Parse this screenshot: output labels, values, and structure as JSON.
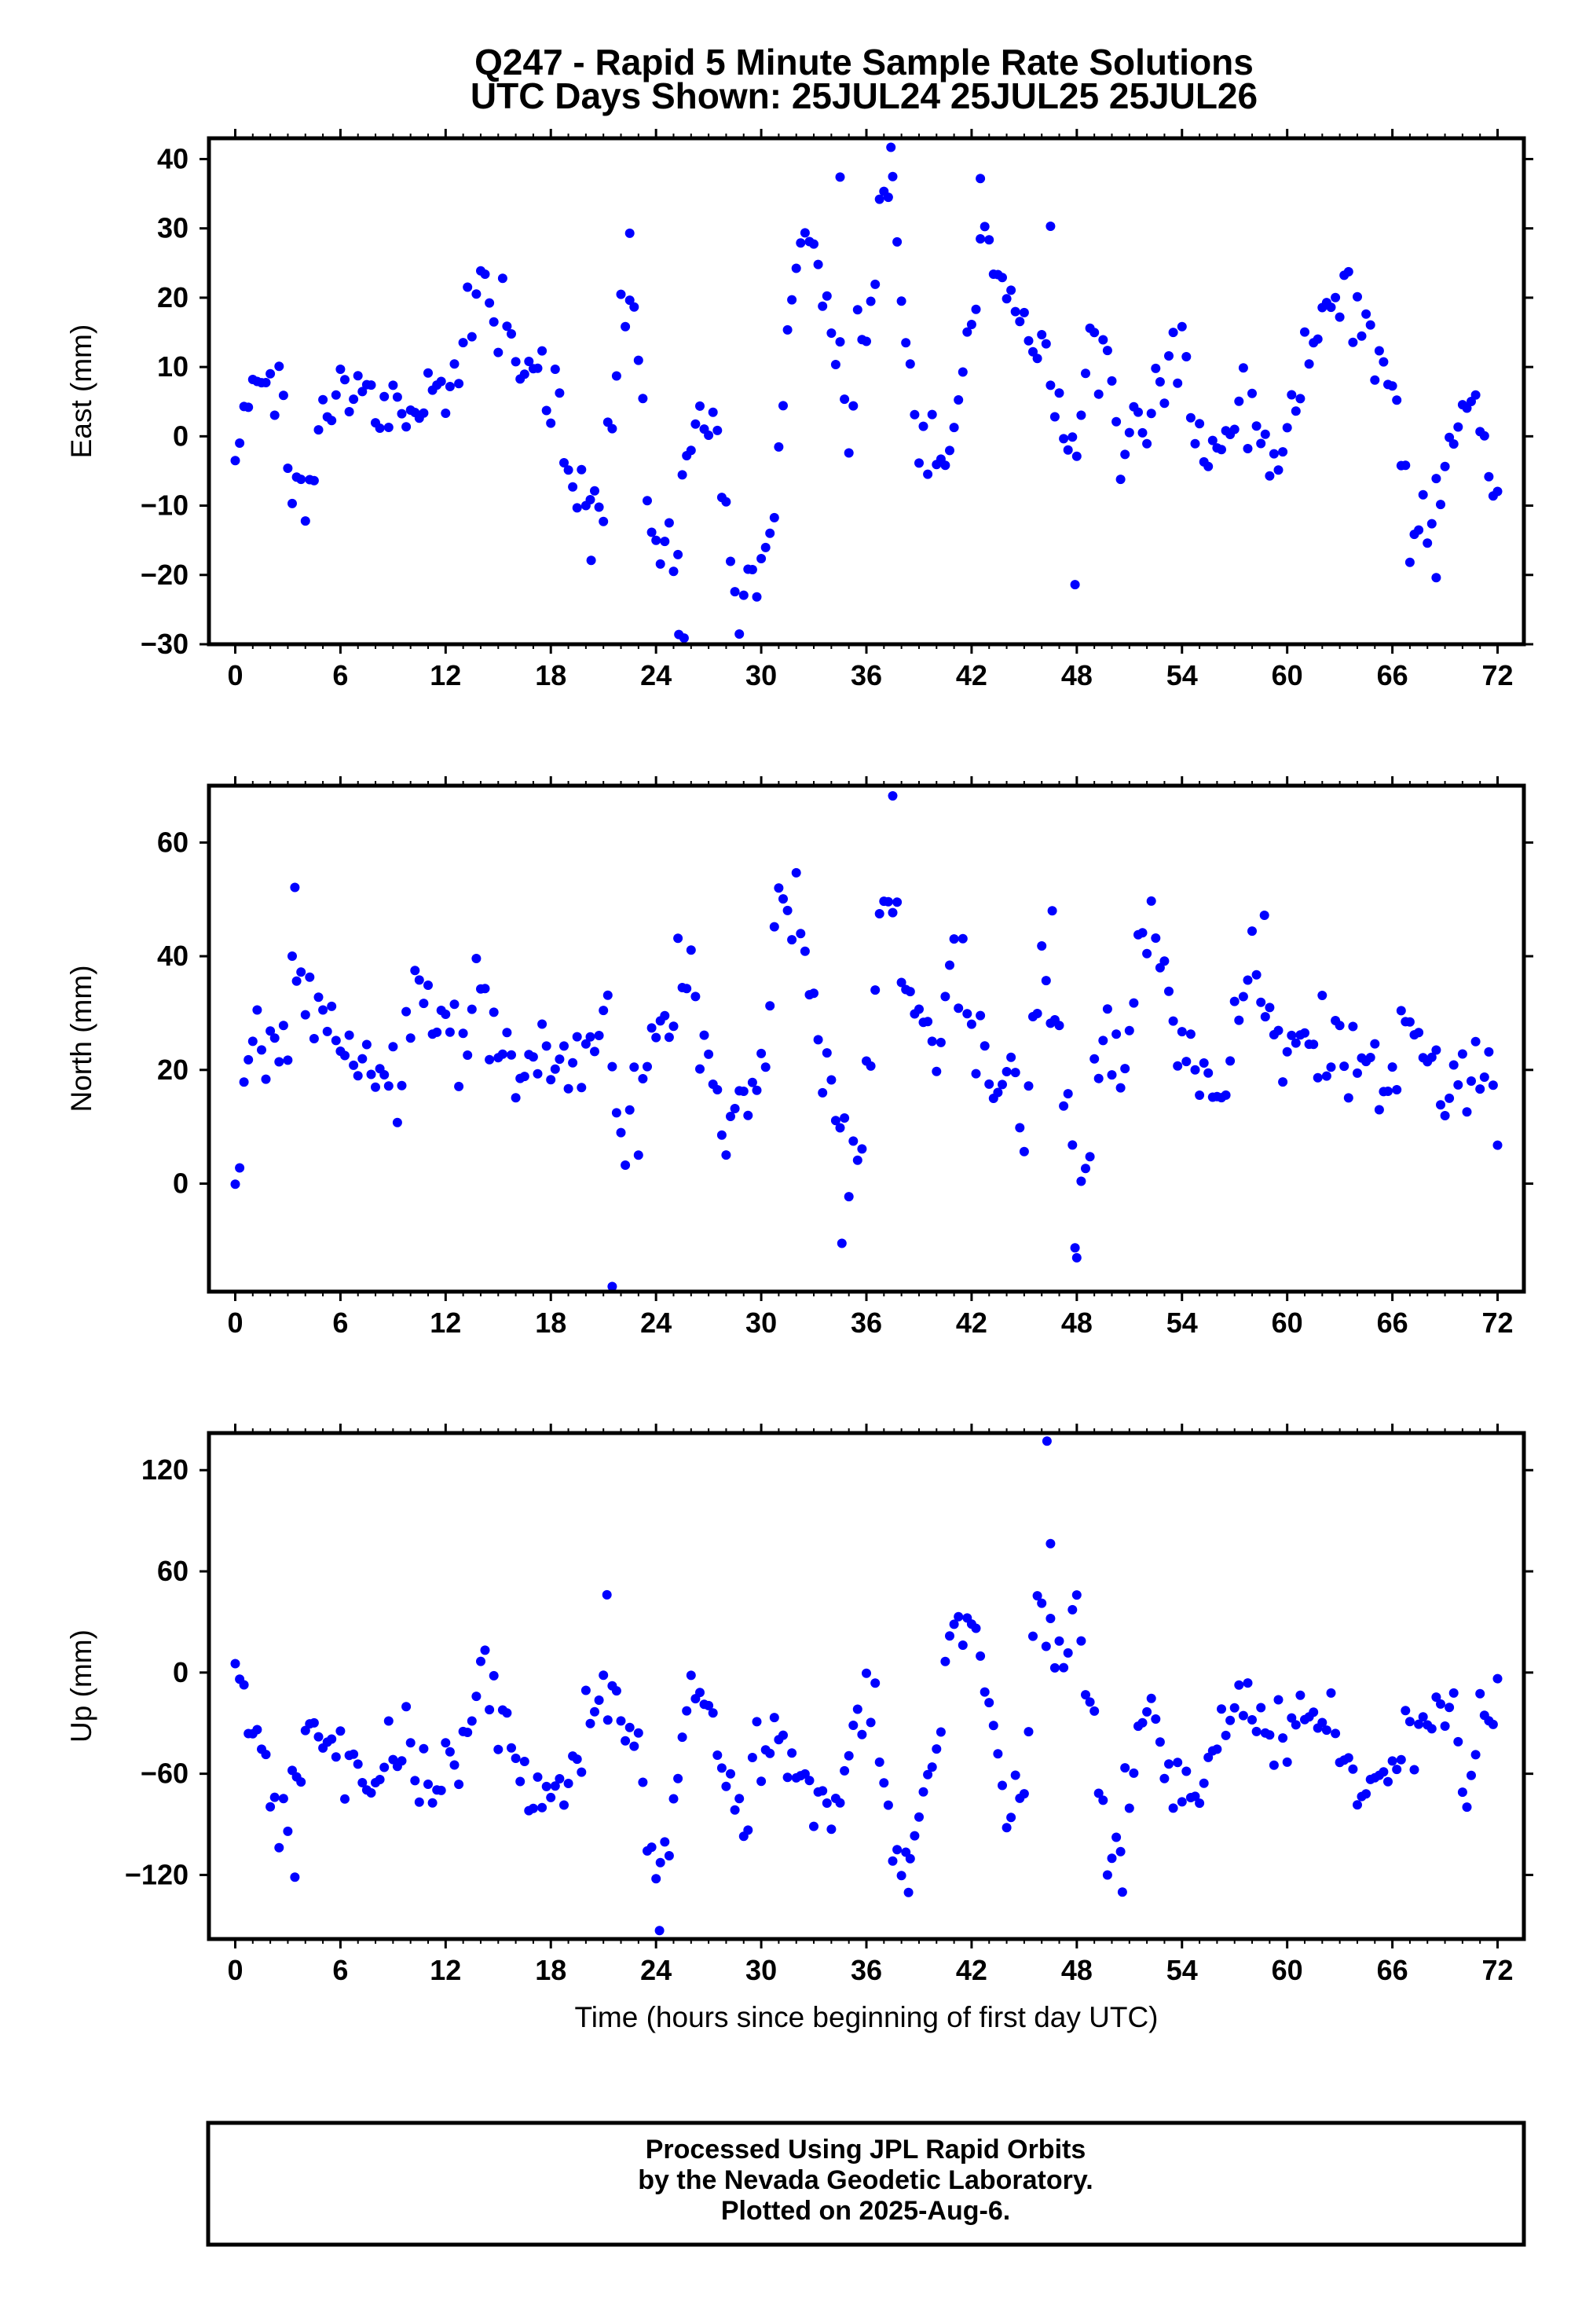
{
  "title": {
    "line1": "Q247 - Rapid 5 Minute Sample Rate Solutions",
    "line2": "UTC Days Shown:  25JUL24 25JUL25 25JUL26"
  },
  "footer": {
    "line1": "Processed Using JPL Rapid Orbits",
    "line2": "by the Nevada Geodetic Laboratory.",
    "line3": "Plotted on 2025-Aug-6."
  },
  "colors": {
    "points": "#0000ff",
    "frame": "#000000",
    "background": "#ffffff"
  },
  "chart_data": [
    {
      "type": "scatter",
      "ylabel": "East (mm)",
      "xlabel": "",
      "xlim": [
        -1.5,
        73.5
      ],
      "ylim": [
        -30,
        43
      ],
      "xticks": [
        0,
        6,
        12,
        18,
        24,
        30,
        36,
        42,
        48,
        54,
        60,
        66,
        72
      ],
      "yticks": [
        -30,
        -20,
        -10,
        0,
        10,
        20,
        30,
        40
      ],
      "ytick_labels": [
        "−30",
        "−20",
        "−10",
        "0",
        "10",
        "20",
        "30",
        "40"
      ],
      "grid": false,
      "anchors": [
        [
          0,
          0
        ],
        [
          0.5,
          5
        ],
        [
          1.5,
          10
        ],
        [
          2.5,
          12
        ],
        [
          3,
          -5
        ],
        [
          4,
          -8
        ],
        [
          5,
          0
        ],
        [
          6,
          10
        ],
        [
          7,
          4
        ],
        [
          8,
          6
        ],
        [
          10,
          4
        ],
        [
          12,
          4
        ],
        [
          13,
          17
        ],
        [
          14.5,
          22
        ],
        [
          15.5,
          14
        ],
        [
          17,
          8
        ],
        [
          18.5,
          3
        ],
        [
          19.5,
          -8
        ],
        [
          21,
          -10
        ],
        [
          22,
          19
        ],
        [
          23,
          13
        ],
        [
          24,
          -20
        ],
        [
          25,
          -15
        ],
        [
          26,
          2
        ],
        [
          27.5,
          0
        ],
        [
          28.5,
          -22
        ],
        [
          30.5,
          -18
        ],
        [
          31.5,
          16
        ],
        [
          32.5,
          30
        ],
        [
          33.5,
          20
        ],
        [
          35,
          3
        ],
        [
          37,
          32
        ],
        [
          37.5,
          40
        ],
        [
          38,
          24
        ],
        [
          39,
          0
        ],
        [
          40.5,
          -8
        ],
        [
          42,
          20
        ],
        [
          42.5,
          30
        ],
        [
          44,
          18
        ],
        [
          45,
          14
        ],
        [
          46,
          16
        ],
        [
          48,
          -5
        ],
        [
          48.5,
          12
        ],
        [
          50,
          12
        ],
        [
          50.5,
          -3
        ],
        [
          52,
          3
        ],
        [
          53.5,
          14
        ],
        [
          54.5,
          6
        ],
        [
          55.5,
          -4
        ],
        [
          57,
          2
        ],
        [
          58,
          3
        ],
        [
          59.5,
          -5
        ],
        [
          61,
          10
        ],
        [
          63,
          22
        ],
        [
          64.5,
          14
        ],
        [
          66,
          6
        ],
        [
          67,
          -10
        ],
        [
          68,
          -14
        ],
        [
          69.5,
          0
        ],
        [
          70.5,
          6
        ],
        [
          71.5,
          -3
        ]
      ],
      "noise": 3.0,
      "outliers": [
        [
          25.3,
          -28.6
        ],
        [
          25.6,
          -29.1
        ],
        [
          34.5,
          37.4
        ],
        [
          42.5,
          37.2
        ],
        [
          46.5,
          30.3
        ],
        [
          47.9,
          -21.4
        ],
        [
          37.4,
          41.7
        ],
        [
          22.5,
          29.3
        ],
        [
          20.3,
          -17.9
        ],
        [
          68.5,
          -20.4
        ]
      ]
    },
    {
      "type": "scatter",
      "ylabel": "North (mm)",
      "xlabel": "",
      "xlim": [
        -1.5,
        73.5
      ],
      "ylim": [
        -19,
        70
      ],
      "xticks": [
        0,
        6,
        12,
        18,
        24,
        30,
        36,
        42,
        48,
        54,
        60,
        66,
        72
      ],
      "yticks": [
        0,
        20,
        40,
        60
      ],
      "ytick_labels": [
        "0",
        "20",
        "40",
        "60"
      ],
      "grid": false,
      "anchors": [
        [
          0,
          0
        ],
        [
          1,
          20
        ],
        [
          2.5,
          28
        ],
        [
          3.5,
          38
        ],
        [
          5,
          30
        ],
        [
          6.5,
          24
        ],
        [
          8,
          20
        ],
        [
          9.5,
          16
        ],
        [
          10.5,
          36
        ],
        [
          12,
          28
        ],
        [
          13,
          25
        ],
        [
          14,
          36
        ],
        [
          15,
          20
        ],
        [
          16.5,
          18
        ],
        [
          18,
          20
        ],
        [
          19.5,
          22
        ],
        [
          21,
          30
        ],
        [
          22,
          5
        ],
        [
          23.5,
          24
        ],
        [
          25,
          30
        ],
        [
          26,
          38
        ],
        [
          27,
          20
        ],
        [
          28,
          12
        ],
        [
          29,
          15
        ],
        [
          30,
          22
        ],
        [
          31,
          45
        ],
        [
          32,
          50
        ],
        [
          33,
          30
        ],
        [
          34.5,
          8
        ],
        [
          35.5,
          0
        ],
        [
          36.5,
          35
        ],
        [
          37.5,
          55
        ],
        [
          38,
          38
        ],
        [
          39,
          30
        ],
        [
          40,
          22
        ],
        [
          41,
          40
        ],
        [
          42.5,
          22
        ],
        [
          44,
          18
        ],
        [
          45,
          5
        ],
        [
          46,
          40
        ],
        [
          47,
          25
        ],
        [
          48,
          -5
        ],
        [
          49.5,
          25
        ],
        [
          50.5,
          15
        ],
        [
          51.5,
          42
        ],
        [
          52.5,
          40
        ],
        [
          53.5,
          25
        ],
        [
          55,
          18
        ],
        [
          56,
          15
        ],
        [
          57,
          25
        ],
        [
          58,
          40
        ],
        [
          59,
          30
        ],
        [
          60,
          25
        ],
        [
          62,
          25
        ],
        [
          63,
          22
        ],
        [
          65,
          20
        ],
        [
          66,
          18
        ],
        [
          67,
          25
        ],
        [
          68,
          22
        ],
        [
          69,
          15
        ],
        [
          70,
          18
        ],
        [
          71,
          22
        ],
        [
          72,
          8
        ]
      ],
      "noise": 4.2,
      "outliers": [
        [
          37.5,
          68.2
        ],
        [
          21.5,
          -18.1
        ],
        [
          3.4,
          52.1
        ],
        [
          46.6,
          48.0
        ],
        [
          58.7,
          47.2
        ],
        [
          47.9,
          -11.3
        ],
        [
          34.6,
          -10.5
        ]
      ]
    },
    {
      "type": "scatter",
      "ylabel": "Up (mm)",
      "xlabel": "Time (hours since beginning of first day UTC)",
      "xlim": [
        -1.5,
        73.5
      ],
      "ylim": [
        -158,
        142
      ],
      "xticks": [
        0,
        6,
        12,
        18,
        24,
        30,
        36,
        42,
        48,
        54,
        60,
        66,
        72
      ],
      "yticks": [
        -120,
        -60,
        0,
        60,
        120
      ],
      "ytick_labels": [
        "−120",
        "−60",
        "0",
        "60",
        "120"
      ],
      "grid": false,
      "anchors": [
        [
          0,
          5
        ],
        [
          1,
          -25
        ],
        [
          2,
          -70
        ],
        [
          3,
          -100
        ],
        [
          4,
          -40
        ],
        [
          5,
          -30
        ],
        [
          6,
          -60
        ],
        [
          8,
          -60
        ],
        [
          10,
          -40
        ],
        [
          11,
          -75
        ],
        [
          12,
          -65
        ],
        [
          13,
          -40
        ],
        [
          14,
          0
        ],
        [
          15,
          -10
        ],
        [
          16,
          -50
        ],
        [
          17,
          -80
        ],
        [
          18.5,
          -70
        ],
        [
          20,
          -30
        ],
        [
          21,
          -10
        ],
        [
          22,
          -30
        ],
        [
          23,
          -50
        ],
        [
          24,
          -120
        ],
        [
          25,
          -70
        ],
        [
          26,
          -10
        ],
        [
          27,
          -20
        ],
        [
          28,
          -70
        ],
        [
          29,
          -80
        ],
        [
          30,
          -45
        ],
        [
          31,
          -40
        ],
        [
          32,
          -60
        ],
        [
          33,
          -75
        ],
        [
          34.5,
          -80
        ],
        [
          35.5,
          -20
        ],
        [
          36.5,
          -20
        ],
        [
          37.5,
          -100
        ],
        [
          38,
          -125
        ],
        [
          39,
          -80
        ],
        [
          40,
          -40
        ],
        [
          41,
          20
        ],
        [
          42,
          40
        ],
        [
          43,
          -20
        ],
        [
          44,
          -70
        ],
        [
          45,
          -80
        ],
        [
          45.5,
          10
        ],
        [
          46,
          45
        ],
        [
          47,
          0
        ],
        [
          48,
          40
        ],
        [
          49,
          -40
        ],
        [
          50,
          -110
        ],
        [
          51,
          -80
        ],
        [
          52,
          -20
        ],
        [
          53,
          -55
        ],
        [
          55,
          -60
        ],
        [
          56,
          -50
        ],
        [
          57,
          -10
        ],
        [
          58,
          -20
        ],
        [
          59,
          -50
        ],
        [
          60,
          -40
        ],
        [
          61,
          -30
        ],
        [
          62.5,
          -30
        ],
        [
          63.5,
          -50
        ],
        [
          64,
          -85
        ],
        [
          65,
          -60
        ],
        [
          67,
          -50
        ],
        [
          68,
          -20
        ],
        [
          69.5,
          -10
        ],
        [
          70,
          -80
        ],
        [
          71,
          -45
        ],
        [
          72,
          -10
        ]
      ],
      "noise": 12,
      "outliers": [
        [
          46.3,
          137.2
        ],
        [
          24.2,
          -153.0
        ],
        [
          46.5,
          76.4
        ],
        [
          3.4,
          -121.3
        ],
        [
          38.4,
          -130.4
        ],
        [
          50.6,
          -130.2
        ],
        [
          21.2,
          46.1
        ]
      ]
    }
  ]
}
